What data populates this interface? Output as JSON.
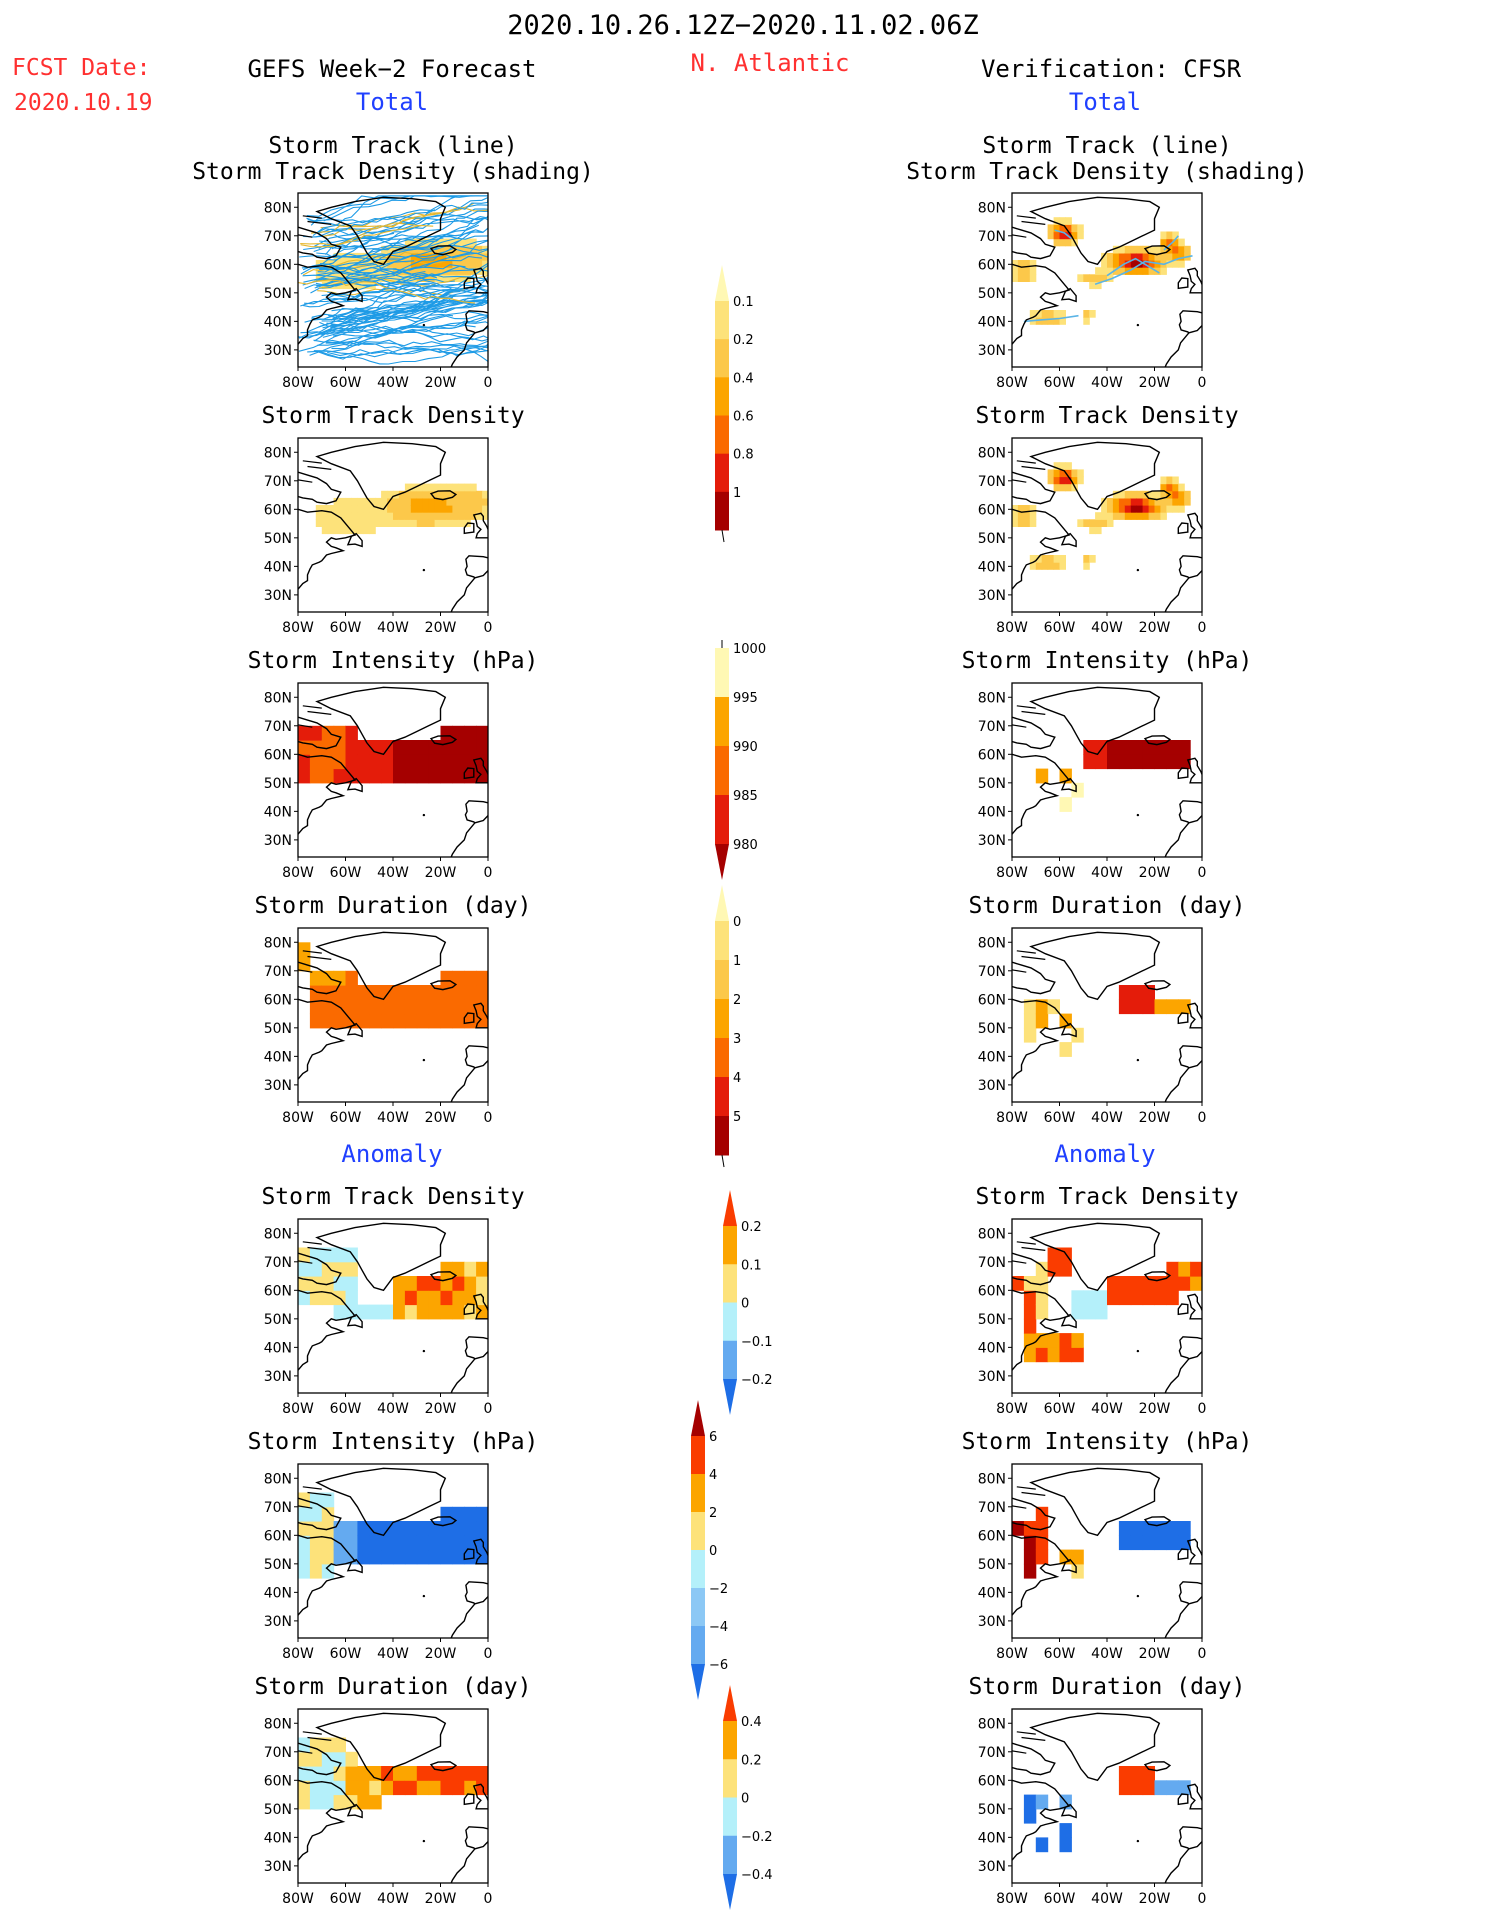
{
  "header": {
    "period": "2020.10.26.12Z−2020.11.02.06Z",
    "fcst_label": "FCST Date:",
    "fcst_date": "2020.10.19",
    "left_title": "GEFS Week−2 Forecast",
    "region": "N. Atlantic",
    "right_title": "Verification: CFSR",
    "total_left": "Total",
    "total_right": "Total",
    "anomaly_left": "Anomaly",
    "anomaly_right": "Anomaly"
  },
  "colors": {
    "black": "#000000",
    "red_text": "#ff3030",
    "blue_text": "#2040ff",
    "track_fcst": "#1e9be6",
    "track_fcst2": "#e6b830",
    "track_obs": "#5ab4e6"
  },
  "chart_data": [
    {
      "type": "heatmap",
      "id": "fcst-track",
      "title": "Storm Track (line)",
      "subtitle": "Storm Track Density (shading)",
      "x_ticks": [
        "80W",
        "60W",
        "40W",
        "20W",
        "0"
      ],
      "y_ticks": [
        "80N",
        "70N",
        "60N",
        "50N",
        "40N",
        "30N"
      ],
      "xlim": [
        -80,
        0
      ],
      "ylim": [
        24,
        85
      ],
      "field": "tracks"
    },
    {
      "type": "heatmap",
      "id": "obs-track",
      "title": "Storm Track (line)",
      "subtitle": "Storm Track Density (shading)",
      "x_ticks": [
        "80W",
        "60W",
        "40W",
        "20W",
        "0"
      ],
      "y_ticks": [
        "80N",
        "70N",
        "60N",
        "50N",
        "40N",
        "30N"
      ],
      "xlim": [
        -80,
        0
      ],
      "ylim": [
        24,
        85
      ],
      "field": "obs_track_density"
    },
    {
      "type": "heatmap",
      "id": "fcst-density",
      "title": "Storm Track Density",
      "x_ticks": [
        "80W",
        "60W",
        "40W",
        "20W",
        "0"
      ],
      "y_ticks": [
        "80N",
        "70N",
        "60N",
        "50N",
        "40N",
        "30N"
      ],
      "xlim": [
        -80,
        0
      ],
      "ylim": [
        24,
        85
      ],
      "field": "fcst_density"
    },
    {
      "type": "heatmap",
      "id": "obs-density",
      "title": "Storm Track Density",
      "x_ticks": [
        "80W",
        "60W",
        "40W",
        "20W",
        "0"
      ],
      "y_ticks": [
        "80N",
        "70N",
        "60N",
        "50N",
        "40N",
        "30N"
      ],
      "xlim": [
        -80,
        0
      ],
      "ylim": [
        24,
        85
      ],
      "field": "obs_density"
    },
    {
      "type": "heatmap",
      "id": "fcst-intensity",
      "title": "Storm Intensity (hPa)",
      "x_ticks": [
        "80W",
        "60W",
        "40W",
        "20W",
        "0"
      ],
      "y_ticks": [
        "80N",
        "70N",
        "60N",
        "50N",
        "40N",
        "30N"
      ],
      "xlim": [
        -80,
        0
      ],
      "ylim": [
        24,
        85
      ],
      "field": "fcst_intensity"
    },
    {
      "type": "heatmap",
      "id": "obs-intensity",
      "title": "Storm Intensity (hPa)",
      "x_ticks": [
        "80W",
        "60W",
        "40W",
        "20W",
        "0"
      ],
      "y_ticks": [
        "80N",
        "70N",
        "60N",
        "50N",
        "40N",
        "30N"
      ],
      "xlim": [
        -80,
        0
      ],
      "ylim": [
        24,
        85
      ],
      "field": "obs_intensity"
    },
    {
      "type": "heatmap",
      "id": "fcst-duration",
      "title": "Storm Duration (day)",
      "x_ticks": [
        "80W",
        "60W",
        "40W",
        "20W",
        "0"
      ],
      "y_ticks": [
        "80N",
        "70N",
        "60N",
        "50N",
        "40N",
        "30N"
      ],
      "xlim": [
        -80,
        0
      ],
      "ylim": [
        24,
        85
      ],
      "field": "fcst_duration"
    },
    {
      "type": "heatmap",
      "id": "obs-duration",
      "title": "Storm Duration (day)",
      "x_ticks": [
        "80W",
        "60W",
        "40W",
        "20W",
        "0"
      ],
      "y_ticks": [
        "80N",
        "70N",
        "60N",
        "50N",
        "40N",
        "30N"
      ],
      "xlim": [
        -80,
        0
      ],
      "ylim": [
        24,
        85
      ],
      "field": "obs_duration"
    },
    {
      "type": "heatmap",
      "id": "fcst-anom-density",
      "title": "Storm Track Density",
      "x_ticks": [
        "80W",
        "60W",
        "40W",
        "20W",
        "0"
      ],
      "y_ticks": [
        "80N",
        "70N",
        "60N",
        "50N",
        "40N",
        "30N"
      ],
      "xlim": [
        -80,
        0
      ],
      "ylim": [
        24,
        85
      ],
      "field": "fcst_anom_density"
    },
    {
      "type": "heatmap",
      "id": "obs-anom-density",
      "title": "Storm Track Density",
      "x_ticks": [
        "80W",
        "60W",
        "40W",
        "20W",
        "0"
      ],
      "y_ticks": [
        "80N",
        "70N",
        "60N",
        "50N",
        "40N",
        "30N"
      ],
      "xlim": [
        -80,
        0
      ],
      "ylim": [
        24,
        85
      ],
      "field": "obs_anom_density"
    },
    {
      "type": "heatmap",
      "id": "fcst-anom-intensity",
      "title": "Storm Intensity (hPa)",
      "x_ticks": [
        "80W",
        "60W",
        "40W",
        "20W",
        "0"
      ],
      "y_ticks": [
        "80N",
        "70N",
        "60N",
        "50N",
        "40N",
        "30N"
      ],
      "xlim": [
        -80,
        0
      ],
      "ylim": [
        24,
        85
      ],
      "field": "fcst_anom_intensity"
    },
    {
      "type": "heatmap",
      "id": "obs-anom-intensity",
      "title": "Storm Intensity (hPa)",
      "x_ticks": [
        "80W",
        "60W",
        "40W",
        "20W",
        "0"
      ],
      "y_ticks": [
        "80N",
        "70N",
        "60N",
        "50N",
        "40N",
        "30N"
      ],
      "xlim": [
        -80,
        0
      ],
      "ylim": [
        24,
        85
      ],
      "field": "obs_anom_intensity"
    },
    {
      "type": "heatmap",
      "id": "fcst-anom-duration",
      "title": "Storm Duration (day)",
      "x_ticks": [
        "80W",
        "60W",
        "40W",
        "20W",
        "0"
      ],
      "y_ticks": [
        "80N",
        "70N",
        "60N",
        "50N",
        "40N",
        "30N"
      ],
      "xlim": [
        -80,
        0
      ],
      "ylim": [
        24,
        85
      ],
      "field": "fcst_anom_duration"
    },
    {
      "type": "heatmap",
      "id": "obs-anom-duration",
      "title": "Storm Duration (day)",
      "x_ticks": [
        "80W",
        "60W",
        "40W",
        "20W",
        "0"
      ],
      "y_ticks": [
        "80N",
        "70N",
        "60N",
        "50N",
        "40N",
        "30N"
      ],
      "xlim": [
        -80,
        0
      ],
      "ylim": [
        24,
        85
      ],
      "field": "obs_anom_duration"
    }
  ],
  "colorbars": [
    {
      "id": "cb-density",
      "labels": [
        "0.1",
        "0.2",
        "0.4",
        "0.6",
        "0.8",
        "1"
      ],
      "colors": [
        "#fff8b4",
        "#fde27a",
        "#fcc84a",
        "#fca500",
        "#fa6a00",
        "#e41c0a",
        "#a50000"
      ],
      "tri_top": true,
      "tri_bottom": false
    },
    {
      "id": "cb-intensity",
      "labels": [
        "1000",
        "995",
        "990",
        "985",
        "980"
      ],
      "colors": [
        "#fff8b4",
        "#fca500",
        "#fa6a00",
        "#e41c0a",
        "#a50000"
      ],
      "tri_top": false,
      "tri_bottom": true
    },
    {
      "id": "cb-duration",
      "labels": [
        "0",
        "1",
        "2",
        "3",
        "4",
        "5"
      ],
      "colors": [
        "#fff8b4",
        "#fde27a",
        "#fcc84a",
        "#fca500",
        "#fa6a00",
        "#e41c0a",
        "#a50000"
      ],
      "tri_top": true,
      "tri_bottom": false
    },
    {
      "id": "cb-anom-density",
      "labels": [
        "0.2",
        "0.1",
        "0",
        "−0.1",
        "−0.2"
      ],
      "colors": [
        "#fa3c00",
        "#fca500",
        "#fde27a",
        "#b4f0fa",
        "#64aaf0",
        "#1e6ee6"
      ],
      "tri_top": true,
      "tri_bottom": true
    },
    {
      "id": "cb-anom-intensity",
      "labels": [
        "6",
        "4",
        "2",
        "0",
        "−2",
        "−4",
        "−6"
      ],
      "colors": [
        "#a50000",
        "#fa3c00",
        "#fca500",
        "#fde27a",
        "#b4f0fa",
        "#8cc8f5",
        "#64aaf0",
        "#1e6ee6"
      ],
      "tri_top": true,
      "tri_bottom": true
    },
    {
      "id": "cb-anom-duration",
      "labels": [
        "0.4",
        "0.2",
        "0",
        "−0.2",
        "−0.4"
      ],
      "colors": [
        "#fa3c00",
        "#fca500",
        "#fde27a",
        "#b4f0fa",
        "#64aaf0",
        "#1e6ee6"
      ],
      "tri_top": true,
      "tri_bottom": true
    }
  ]
}
